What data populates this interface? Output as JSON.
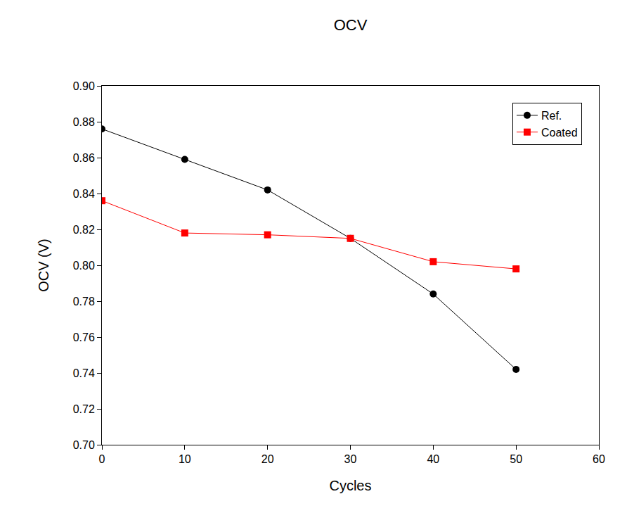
{
  "chart_data": {
    "type": "line",
    "title": "OCV",
    "x_label": "Cycles",
    "y_label": "OCV (V)",
    "x": [
      0,
      10,
      20,
      30,
      40,
      50
    ],
    "series": [
      {
        "name": "Ref.",
        "color": "#000000",
        "marker": "circle",
        "line_style": "solid",
        "values": [
          0.876,
          0.859,
          0.842,
          0.815,
          0.784,
          0.742
        ]
      },
      {
        "name": "Coated",
        "color": "#ff0000",
        "marker": "square",
        "line_style": "solid",
        "values": [
          0.836,
          0.818,
          0.817,
          0.815,
          0.802,
          0.798
        ]
      }
    ],
    "xlim": [
      0,
      60
    ],
    "xticks": [
      0,
      10,
      20,
      30,
      40,
      50,
      60
    ],
    "ylim": [
      0.7,
      0.9
    ],
    "yticks": [
      {
        "value": 0.7,
        "label": "0.70"
      },
      0.72,
      0.74,
      0.76,
      0.78,
      {
        "value": 0.8,
        "label": "0.80"
      },
      0.82,
      0.84,
      0.86,
      0.88,
      {
        "value": 0.9,
        "label": "0.90"
      }
    ],
    "grid": false,
    "legend": "upper right"
  }
}
